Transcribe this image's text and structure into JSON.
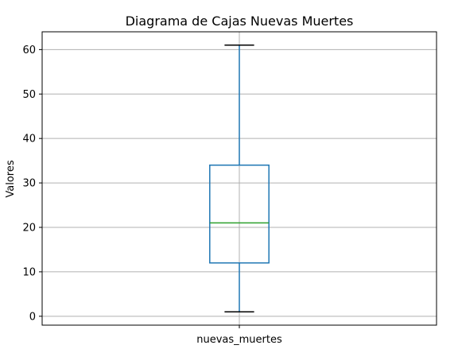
{
  "chart_data": {
    "type": "box",
    "title": "Diagrama de Cajas Nuevas Muertes",
    "ylabel": "Valores",
    "xlabel": "",
    "categories": [
      "nuevas_muertes"
    ],
    "boxes": [
      {
        "name": "nuevas_muertes",
        "whisker_low": 1,
        "q1": 12,
        "median": 21,
        "q3": 34,
        "whisker_high": 61
      }
    ],
    "y_ticks": [
      0,
      10,
      20,
      30,
      40,
      50,
      60
    ],
    "ylim": [
      -2,
      64
    ],
    "grid": true,
    "colors": {
      "box": "#1f77b4",
      "median": "#2ca02c",
      "caps": "#000000",
      "grid": "#b0b0b0"
    }
  }
}
